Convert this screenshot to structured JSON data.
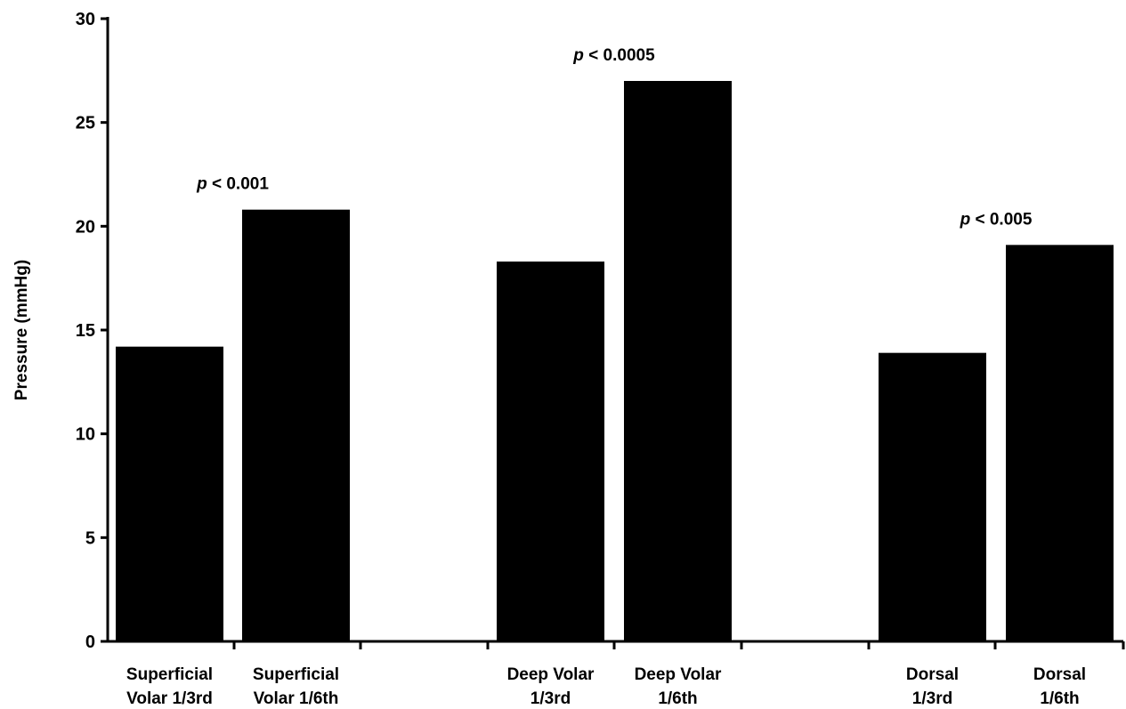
{
  "chart_data": {
    "type": "bar",
    "ylabel": "Pressure (mmHg)",
    "xlabel": "",
    "ylim": [
      0,
      30
    ],
    "yticks": [
      0,
      5,
      10,
      15,
      20,
      25,
      30
    ],
    "grid": false,
    "legend": "none",
    "bar_color": "#000000",
    "categories": [
      {
        "lines": [
          "Superficial",
          "Volar 1/3rd"
        ],
        "value": 14.2
      },
      {
        "lines": [
          "Superficial",
          "Volar 1/6th"
        ],
        "value": 20.8
      },
      {
        "lines": [
          "Deep Volar",
          "1/3rd"
        ],
        "value": 18.3
      },
      {
        "lines": [
          "Deep Volar",
          "1/6th"
        ],
        "value": 27.0
      },
      {
        "lines": [
          "Dorsal",
          "1/3rd"
        ],
        "value": 13.9
      },
      {
        "lines": [
          "Dorsal",
          "1/6th"
        ],
        "value": 19.1
      }
    ],
    "annotations": [
      {
        "prefix": "p",
        "text": " < 0.001",
        "group": 0
      },
      {
        "prefix": "p",
        "text": " < 0.0005",
        "group": 1
      },
      {
        "prefix": "p",
        "text": " < 0.005",
        "group": 2
      }
    ]
  }
}
